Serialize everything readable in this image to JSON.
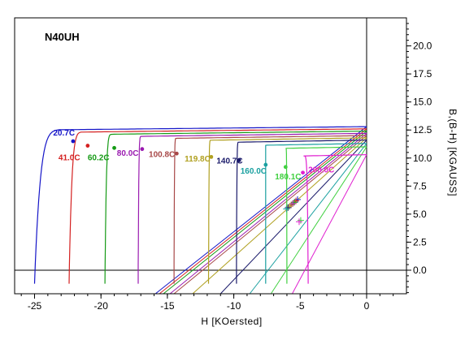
{
  "chart_data": {
    "type": "line",
    "title": "N40UH",
    "xlabel": "H  [KOersted]",
    "ylabel": "B,(B-H)  [KGAUSS]",
    "xlim": [
      -26.5,
      3
    ],
    "ylim": [
      -2.1,
      22.5
    ],
    "x_ticks": [
      -25,
      -20,
      -15,
      -10,
      -5,
      0
    ],
    "x_tick_labels": [
      "-25",
      "-20",
      "-15",
      "-10",
      "-5",
      "0"
    ],
    "y_ticks": [
      0,
      2.5,
      5,
      7.5,
      10,
      12.5,
      15,
      17.5,
      20
    ],
    "y_tick_labels": [
      "0.0",
      "2.5",
      "5.0",
      "7.5",
      "10.0",
      "12.5",
      "15.0",
      "17.5",
      "20.0"
    ],
    "grid": false,
    "series": [
      {
        "name": "20.7C",
        "color": "#1515c8",
        "br": 12.8,
        "hcj": -25.0,
        "hc": -14.7,
        "knee": [
          -22.1,
          11.5
        ],
        "slope": 0.1,
        "label_pos": [
          -23.6,
          12.0
        ]
      },
      {
        "name": "41.0C",
        "color": "#d42020",
        "br": 12.6,
        "hcj": -22.4,
        "hc": -14.4,
        "knee": [
          -21.0,
          11.1
        ],
        "slope": 0.11,
        "label_pos": [
          -23.2,
          9.8
        ]
      },
      {
        "name": "60.2C",
        "color": "#159a15",
        "br": 12.4,
        "hcj": -19.7,
        "hc": -14.1,
        "knee": [
          -19.0,
          10.9
        ],
        "slope": 0.12,
        "label_pos": [
          -21.0,
          9.8
        ]
      },
      {
        "name": "80.0C",
        "color": "#9a1ab0",
        "br": 12.2,
        "hcj": -17.2,
        "hc": -13.6,
        "knee": [
          -16.9,
          10.8
        ],
        "slope": 0.13,
        "label_pos": [
          -18.8,
          10.2
        ]
      },
      {
        "name": "100.8C",
        "color": "#a84848",
        "br": 12.0,
        "hcj": -14.5,
        "hc": -13.3,
        "knee": [
          -14.3,
          10.4
        ],
        "slope": 0.14,
        "label_pos": [
          -16.4,
          10.1
        ]
      },
      {
        "name": "119.8C",
        "color": "#b0a020",
        "br": 11.8,
        "hcj": -11.9,
        "hc": -11.9,
        "knee": [
          -11.7,
          10.1
        ],
        "slope": 0.15,
        "label_pos": [
          -13.7,
          9.7
        ]
      },
      {
        "name": "140.7C",
        "color": "#1a1a6a",
        "br": 11.6,
        "hcj": -9.8,
        "hc": -9.8,
        "knee": [
          -9.6,
          9.8
        ],
        "slope": 0.16,
        "label_pos": [
          -11.3,
          9.5
        ]
      },
      {
        "name": "160.0C",
        "color": "#1aa0a0",
        "br": 11.3,
        "hcj": -7.6,
        "hc": -7.6,
        "knee": [
          -7.6,
          9.4
        ],
        "slope": 0.17,
        "label_pos": [
          -9.5,
          8.6
        ]
      },
      {
        "name": "180.1C",
        "color": "#40d040",
        "br": 11.0,
        "hcj": -6.0,
        "hc": -6.0,
        "knee": [
          -6.1,
          9.2
        ],
        "slope": 0.18,
        "label_pos": [
          -6.9,
          8.1
        ]
      },
      {
        "name": "200.0C",
        "color": "#e020d0",
        "br": 10.3,
        "hcj": -4.4,
        "hc": -4.4,
        "knee": [
          -4.8,
          8.7
        ],
        "slope": 0.2,
        "label_pos": [
          -4.4,
          8.7
        ]
      }
    ]
  }
}
